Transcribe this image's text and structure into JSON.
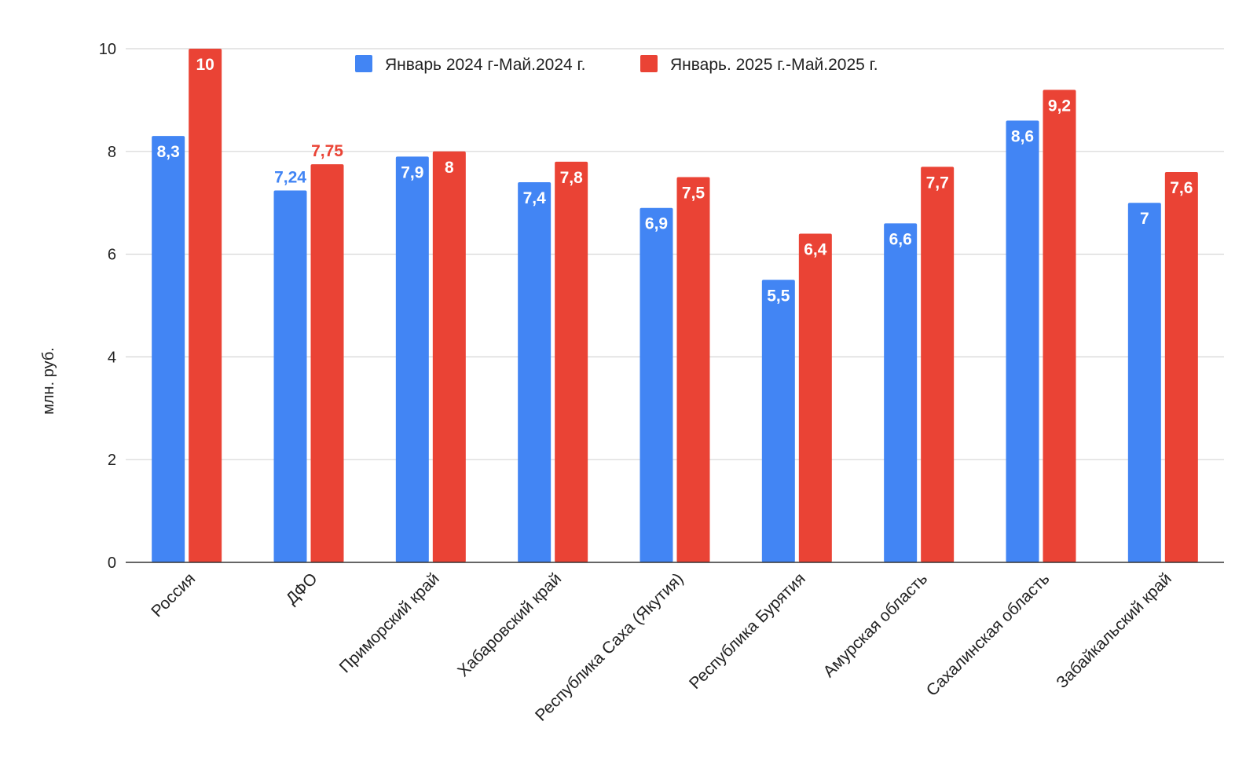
{
  "chart_data": {
    "type": "bar",
    "title": "",
    "xlabel": "",
    "ylabel": "млн. руб.",
    "ylim": [
      0,
      10
    ],
    "yticks": [
      0,
      2,
      4,
      6,
      8,
      10
    ],
    "grid": true,
    "legend_position": "top",
    "categories": [
      "Россия",
      "ДФО",
      "Приморский край",
      "Хабаровский край",
      "Республика Саха (Якутия)",
      "Республика Бурятия",
      "Амурская область",
      "Сахалинская область",
      "Забайкальский край"
    ],
    "series": [
      {
        "name": "Январь 2024 г-Май.2024 г.",
        "color": "#4285f4",
        "values": [
          8.3,
          7.24,
          7.9,
          7.4,
          6.9,
          5.5,
          6.6,
          8.6,
          7
        ],
        "labels": [
          "8,3",
          "7,24",
          "7,9",
          "7,4",
          "6,9",
          "5,5",
          "6,6",
          "8,6",
          "7"
        ]
      },
      {
        "name": "Январь. 2025 г.-Май.2025 г.",
        "color": "#ea4335",
        "values": [
          10,
          7.75,
          8,
          7.8,
          7.5,
          6.4,
          7.7,
          9.2,
          7.6
        ],
        "labels": [
          "10",
          "7,75",
          "8",
          "7,8",
          "7,5",
          "6,4",
          "7,7",
          "9,2",
          "7,6"
        ]
      }
    ],
    "outside_label_categories": [
      "ДФО"
    ]
  }
}
